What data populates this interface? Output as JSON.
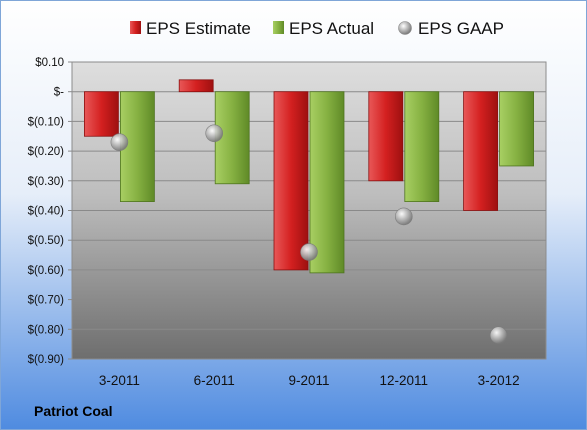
{
  "company": "Patriot Coal",
  "chart_data": {
    "type": "bar",
    "categories": [
      "3-2011",
      "6-2011",
      "9-2011",
      "12-2011",
      "3-2012"
    ],
    "series": [
      {
        "name": "EPS Estimate",
        "type": "bar",
        "color": "#d42a2a",
        "values": [
          -0.15,
          0.04,
          -0.6,
          -0.3,
          -0.4
        ]
      },
      {
        "name": "EPS Actual",
        "type": "bar",
        "color": "#8fb848",
        "values": [
          -0.37,
          -0.31,
          -0.61,
          -0.37,
          -0.25
        ]
      },
      {
        "name": "EPS GAAP",
        "type": "scatter",
        "color": "#a8a8a8",
        "values": [
          -0.17,
          -0.14,
          -0.54,
          -0.42,
          -0.82
        ]
      }
    ],
    "y_ticks": [
      {
        "value": 0.1,
        "label": "$0.10"
      },
      {
        "value": 0.0,
        "label": "$-"
      },
      {
        "value": -0.1,
        "label": "$(0.10)"
      },
      {
        "value": -0.2,
        "label": "$(0.20)"
      },
      {
        "value": -0.3,
        "label": "$(0.30)"
      },
      {
        "value": -0.4,
        "label": "$(0.40)"
      },
      {
        "value": -0.5,
        "label": "$(0.50)"
      },
      {
        "value": -0.6,
        "label": "$(0.60)"
      },
      {
        "value": -0.7,
        "label": "$(0.70)"
      },
      {
        "value": -0.8,
        "label": "$(0.80)"
      },
      {
        "value": -0.9,
        "label": "$(0.90)"
      }
    ],
    "ylim": [
      -0.9,
      0.1
    ],
    "grid": true,
    "legend_position": "top"
  }
}
